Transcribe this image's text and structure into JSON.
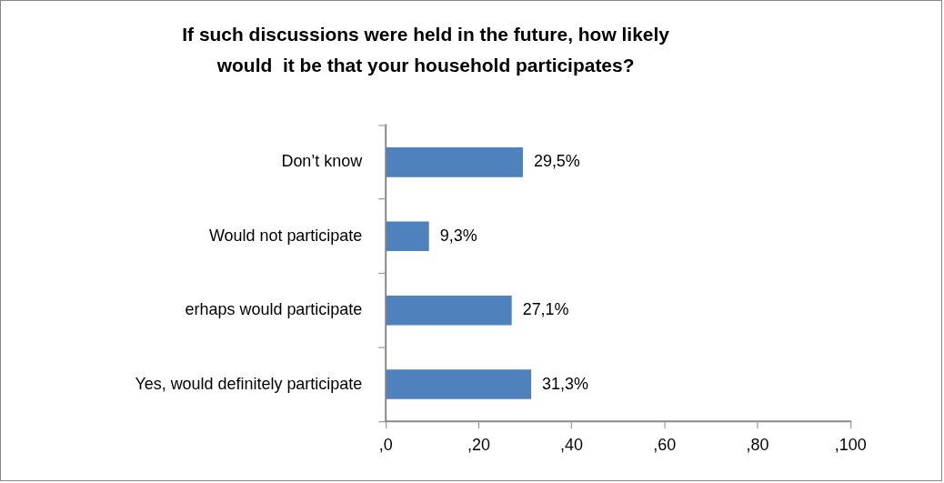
{
  "chart_data": {
    "type": "bar",
    "orientation": "horizontal",
    "title": "If such discussions were held in the future, how likely would  it be that your household participates?",
    "categories": [
      "Don’t know",
      "Would not participate",
      "erhaps would participate",
      "Yes, would definitely participate"
    ],
    "values": [
      29.5,
      9.3,
      27.1,
      31.3
    ],
    "value_labels": [
      "29,5%",
      "9,3%",
      "27,1%",
      "31,3%"
    ],
    "color": "#4f81bd",
    "xlim": [
      0,
      100
    ],
    "xticks": [
      {
        "value": 0,
        "label": ",0"
      },
      {
        "value": 20,
        "label": ",20"
      },
      {
        "value": 40,
        "label": ",40"
      },
      {
        "value": 60,
        "label": ",60"
      },
      {
        "value": 80,
        "label": ",80"
      },
      {
        "value": 100,
        "label": ",100"
      }
    ],
    "grid": false,
    "legend": false
  }
}
